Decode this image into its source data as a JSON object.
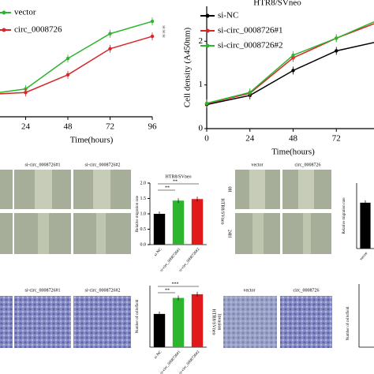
{
  "chart_data": [
    {
      "type": "line",
      "x": [
        0,
        24,
        48,
        72,
        96
      ],
      "xlim": [
        0,
        96
      ],
      "xticks": [
        24,
        48,
        72,
        96
      ],
      "xlabel": "Time(hours)",
      "ylim": [
        0,
        2.5
      ],
      "series": [
        {
          "name": "vector",
          "color": "#2db52d",
          "values": [
            0.5,
            0.63,
            1.32,
            1.88,
            2.16
          ]
        },
        {
          "name": "circ_0008726",
          "color": "#d62728",
          "values": [
            0.5,
            0.55,
            0.95,
            1.54,
            1.82
          ]
        }
      ],
      "annotations": [
        "***"
      ]
    },
    {
      "type": "line",
      "title": "HTR8/SVneo",
      "x": [
        0,
        24,
        48,
        72,
        96
      ],
      "xlim": [
        0,
        96
      ],
      "xticks": [
        0,
        24,
        48,
        72
      ],
      "xlabel": "Time(hours)",
      "ylabel": "Cell density (A450nm)",
      "ylim": [
        0,
        2.8
      ],
      "yticks": [
        0,
        1,
        2
      ],
      "series": [
        {
          "name": "si-NC",
          "color": "#000000",
          "values": [
            0.55,
            0.76,
            1.33,
            1.78,
            2.0
          ]
        },
        {
          "name": "si-circ_0008726#1",
          "color": "#d62728",
          "values": [
            0.57,
            0.81,
            1.62,
            2.07,
            2.45
          ]
        },
        {
          "name": "si-circ_0008726#2",
          "color": "#2db52d",
          "values": [
            0.58,
            0.83,
            1.68,
            2.07,
            2.5
          ]
        }
      ],
      "annotations": []
    },
    {
      "type": "bar",
      "title": "HTR8/SVneo",
      "ylabel": "Relative migration rate",
      "categories": [
        "si-NC",
        "si-circ_0008726#1",
        "si-circ_0008726#2"
      ],
      "values": [
        1.0,
        1.43,
        1.48
      ],
      "colors": [
        "#000000",
        "#2db52d",
        "#e0191b"
      ],
      "ylim": [
        0,
        2.0
      ],
      "yticks": [
        {
          "value": 0,
          "label": "0.0"
        },
        {
          "value": 0.5,
          "label": "0.5"
        },
        {
          "value": 1,
          "label": "1.0"
        },
        {
          "value": 1.5,
          "label": "1.5"
        },
        {
          "value": 2,
          "label": "2.0"
        }
      ],
      "annotations": [
        "**",
        "**"
      ]
    },
    {
      "type": "bar",
      "ylabel": "Relative migration rate",
      "categories": [
        "vector"
      ],
      "values": [
        1.05
      ],
      "colors": [
        "#000000"
      ],
      "ylim": [
        0,
        1.5
      ],
      "annotations": []
    },
    {
      "type": "bar",
      "ylabel": "Number of cells/field",
      "categories": [
        "si-NC",
        "si-circ_0008726#1",
        "si-circ_0008726#2"
      ],
      "values": [
        270,
        400,
        430
      ],
      "colors": [
        "#000000",
        "#2db52d",
        "#e0191b"
      ],
      "ylim": [
        0,
        500
      ],
      "annotations": [
        "**",
        "***"
      ]
    }
  ],
  "panels": {
    "migration_left": {
      "columns": [
        "si-circ_0008726#1",
        "si-circ_0008726#2"
      ]
    },
    "migration_right": {
      "columns": [
        "vector",
        "circ_0008726"
      ],
      "rows": [
        "0H",
        "24H"
      ],
      "cell_line": "HTR8/SVneo"
    },
    "invasion_left": {
      "columns": [
        "si-circ_0008726#1",
        "si-circ_0008726#2"
      ]
    },
    "invasion_right": {
      "columns": [
        "vector",
        "circ_0008726"
      ],
      "cell_line": "HTR8/SVneo",
      "row": "Invasion",
      "ylabel": "Number of cells/field"
    }
  }
}
